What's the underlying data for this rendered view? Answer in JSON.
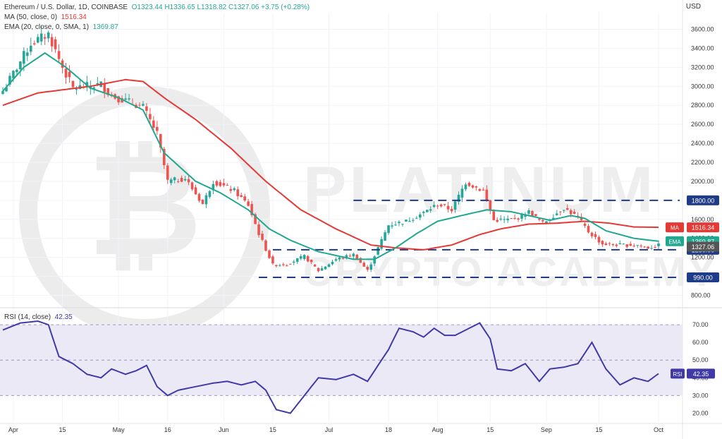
{
  "header": {
    "symbol": "Ethereum / U.S. Dollar, 1D, COINBASE",
    "ohlc": "O1323.44 H1336.65 L1318.82 C1327.06 +3.75 (+0.28%)",
    "ma_label": "MA (50, close, 0)",
    "ma_value": "1516.34",
    "ema_label": "EMA (20, close, 0, SMA, 1)",
    "ema_value": "1369.87",
    "currency": "USD"
  },
  "colors": {
    "up": "#26a69a",
    "down": "#ef5350",
    "ma": "#e53935",
    "ema": "#1fa88f",
    "rsi": "#3f3aa8",
    "rsi_band": "#ece9f7",
    "level": "#1f3c88",
    "price_badge": "#555555"
  },
  "chart_data": [
    {
      "type": "candlestick",
      "title": "Ethereum / U.S. Dollar, 1D, COINBASE",
      "ylim": [
        700,
        3700
      ],
      "y_ticks": [
        800,
        1000,
        1200,
        1400,
        1600,
        1800,
        2000,
        2200,
        2400,
        2600,
        2800,
        3000,
        3200,
        3400,
        3600
      ],
      "x_ticks": [
        "Apr",
        "15",
        "May",
        "16",
        "Jun",
        "15",
        "Jul",
        "18",
        "Aug",
        "15",
        "Sep",
        "15",
        "Oct"
      ],
      "x_tick_days": [
        3,
        17,
        33,
        47,
        63,
        77,
        93,
        110,
        124,
        139,
        155,
        170,
        187
      ],
      "num_days": 188,
      "candle_anchors": [
        [
          0,
          2950
        ],
        [
          8,
          3450
        ],
        [
          13,
          3550
        ],
        [
          17,
          3200
        ],
        [
          20,
          2980
        ],
        [
          28,
          3020
        ],
        [
          31,
          2900
        ],
        [
          35,
          2850
        ],
        [
          40,
          2780
        ],
        [
          44,
          2500
        ],
        [
          47,
          2000
        ],
        [
          52,
          2030
        ],
        [
          57,
          1760
        ],
        [
          60,
          2000
        ],
        [
          66,
          1900
        ],
        [
          70,
          1750
        ],
        [
          73,
          1450
        ],
        [
          77,
          1120
        ],
        [
          81,
          1130
        ],
        [
          86,
          1210
        ],
        [
          90,
          1060
        ],
        [
          95,
          1180
        ],
        [
          100,
          1230
        ],
        [
          104,
          1060
        ],
        [
          110,
          1540
        ],
        [
          115,
          1580
        ],
        [
          120,
          1670
        ],
        [
          124,
          1760
        ],
        [
          128,
          1700
        ],
        [
          132,
          1990
        ],
        [
          137,
          1900
        ],
        [
          140,
          1590
        ],
        [
          146,
          1600
        ],
        [
          150,
          1680
        ],
        [
          154,
          1560
        ],
        [
          160,
          1720
        ],
        [
          164,
          1620
        ],
        [
          167,
          1470
        ],
        [
          171,
          1340
        ],
        [
          176,
          1330
        ],
        [
          181,
          1330
        ],
        [
          184,
          1300
        ],
        [
          187,
          1327.06
        ]
      ],
      "ma_anchors": [
        [
          0,
          2800
        ],
        [
          10,
          2930
        ],
        [
          25,
          3000
        ],
        [
          35,
          3070
        ],
        [
          40,
          3050
        ],
        [
          46,
          2880
        ],
        [
          55,
          2650
        ],
        [
          65,
          2350
        ],
        [
          75,
          2000
        ],
        [
          85,
          1700
        ],
        [
          95,
          1500
        ],
        [
          105,
          1330
        ],
        [
          112,
          1300
        ],
        [
          120,
          1280
        ],
        [
          128,
          1330
        ],
        [
          136,
          1440
        ],
        [
          142,
          1500
        ],
        [
          150,
          1550
        ],
        [
          158,
          1560
        ],
        [
          166,
          1580
        ],
        [
          173,
          1560
        ],
        [
          180,
          1520
        ],
        [
          187,
          1516.34
        ]
      ],
      "ema_anchors": [
        [
          0,
          2950
        ],
        [
          6,
          3200
        ],
        [
          12,
          3350
        ],
        [
          18,
          3200
        ],
        [
          25,
          2980
        ],
        [
          33,
          2880
        ],
        [
          40,
          2750
        ],
        [
          46,
          2300
        ],
        [
          55,
          2000
        ],
        [
          62,
          1880
        ],
        [
          70,
          1700
        ],
        [
          76,
          1500
        ],
        [
          82,
          1380
        ],
        [
          90,
          1260
        ],
        [
          100,
          1180
        ],
        [
          106,
          1180
        ],
        [
          112,
          1300
        ],
        [
          118,
          1450
        ],
        [
          124,
          1580
        ],
        [
          132,
          1650
        ],
        [
          138,
          1700
        ],
        [
          145,
          1680
        ],
        [
          150,
          1640
        ],
        [
          156,
          1590
        ],
        [
          162,
          1640
        ],
        [
          166,
          1610
        ],
        [
          172,
          1480
        ],
        [
          180,
          1400
        ],
        [
          187,
          1369.87
        ]
      ],
      "levels": [
        {
          "value": 1800,
          "label": "1800.00",
          "from_day": 100
        },
        {
          "value": 1280,
          "label": "1280.00",
          "from_day": 77
        },
        {
          "value": 990,
          "label": "990.00",
          "from_day": 73
        }
      ],
      "price_badges": {
        "ma_tag": "MA",
        "ma": "1516.34",
        "ema_tag": "EMA",
        "ema": "1369.87",
        "last": "1327.06"
      },
      "watermark": [
        "PLATINUM",
        "CRYPTO ACADEMY"
      ]
    },
    {
      "type": "line",
      "title": "RSI (14, close)",
      "value": "42.35",
      "ylim": [
        15,
        78
      ],
      "y_ticks": [
        20,
        30,
        40,
        50,
        60,
        70
      ],
      "y_tick_labels": [
        "20.00",
        "30.00",
        "40.00",
        "50.00",
        "60.00",
        "70.00"
      ],
      "band": [
        30,
        70
      ],
      "anchors": [
        [
          0,
          67
        ],
        [
          5,
          71
        ],
        [
          10,
          72
        ],
        [
          13,
          70
        ],
        [
          16,
          52
        ],
        [
          20,
          48
        ],
        [
          24,
          42
        ],
        [
          28,
          40
        ],
        [
          31,
          45
        ],
        [
          35,
          42
        ],
        [
          38,
          44
        ],
        [
          41,
          47
        ],
        [
          44,
          35
        ],
        [
          47,
          30
        ],
        [
          50,
          33
        ],
        [
          55,
          35
        ],
        [
          60,
          37
        ],
        [
          64,
          38
        ],
        [
          68,
          36
        ],
        [
          72,
          38
        ],
        [
          75,
          33
        ],
        [
          78,
          22
        ],
        [
          82,
          20
        ],
        [
          86,
          30
        ],
        [
          90,
          40
        ],
        [
          95,
          39
        ],
        [
          100,
          42
        ],
        [
          104,
          38
        ],
        [
          108,
          50
        ],
        [
          110,
          56
        ],
        [
          113,
          68
        ],
        [
          117,
          66
        ],
        [
          120,
          63
        ],
        [
          123,
          68
        ],
        [
          126,
          64
        ],
        [
          129,
          64
        ],
        [
          133,
          68
        ],
        [
          136,
          71
        ],
        [
          139,
          62
        ],
        [
          141,
          45
        ],
        [
          145,
          44
        ],
        [
          149,
          48
        ],
        [
          153,
          38
        ],
        [
          156,
          45
        ],
        [
          160,
          46
        ],
        [
          164,
          48
        ],
        [
          168,
          60
        ],
        [
          172,
          45
        ],
        [
          176,
          36
        ],
        [
          180,
          40
        ],
        [
          184,
          38
        ],
        [
          187,
          42.35
        ]
      ]
    }
  ]
}
